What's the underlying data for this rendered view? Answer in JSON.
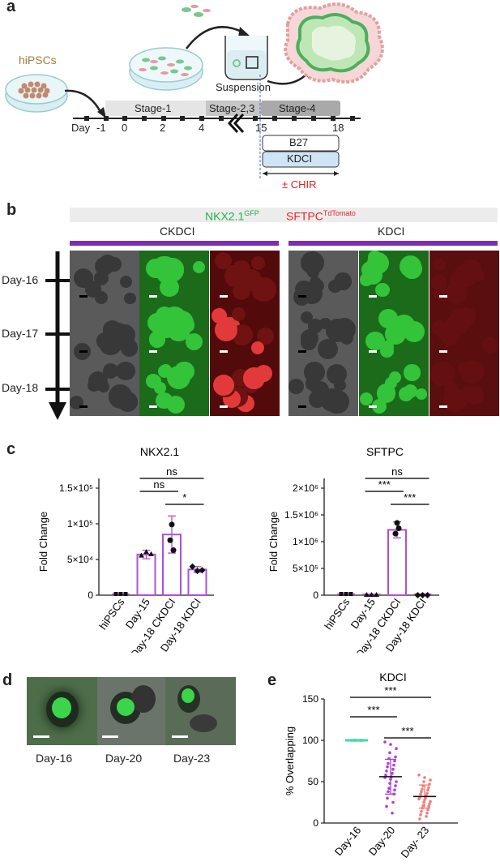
{
  "panel_letters": {
    "a": "a",
    "b": "b",
    "c": "c",
    "d": "d",
    "e": "e"
  },
  "panel_a": {
    "hipscs": "hiPSCs",
    "suspension": "Suspension",
    "stages": [
      "Stage-1",
      "Stage-2,3",
      "Stage-4"
    ],
    "day_label": "Day",
    "days": [
      "-1",
      "0",
      "2",
      "4",
      "15",
      "18"
    ],
    "media": [
      "B27",
      "KDCI"
    ],
    "chir": "± CHIR"
  },
  "panel_b": {
    "nkx_label": "NKX2.1",
    "nkx_sup": "GFP",
    "sftpc_label": "SFTPC",
    "sftpc_sup": "TdTomato",
    "conditions": [
      "CKDCI",
      "KDCI"
    ],
    "days": [
      "Day-16",
      "Day-17",
      "Day-18"
    ],
    "colors": {
      "purple": "#7a2fb0",
      "green": "#1fb34a",
      "red": "#e8262a"
    }
  },
  "chart_data": [
    {
      "type": "bar",
      "title": "NKX2.1",
      "ylabel": "Fold Change",
      "categories": [
        "hiPSCs",
        "Day-15",
        "Day-18 CKDCI",
        "Day-18 KDCI"
      ],
      "values": [
        0,
        57000,
        85000,
        36000
      ],
      "error": [
        0,
        6000,
        26000,
        4000
      ],
      "points": [
        [
          0,
          0,
          0
        ],
        [
          55000,
          60000,
          57000
        ],
        [
          99000,
          77000,
          63000
        ],
        [
          40000,
          34000,
          35000
        ]
      ],
      "yticks": [
        "0",
        "5×10⁴",
        "1×10⁵",
        "1.5×10⁵"
      ],
      "ytick_values": [
        0,
        50000,
        100000,
        150000
      ],
      "ylim": [
        0,
        150000
      ],
      "significance": [
        {
          "from": 1,
          "to": 3,
          "label": "ns"
        },
        {
          "from": 1,
          "to": 2,
          "label": "ns"
        },
        {
          "from": 2,
          "to": 3,
          "label": "*"
        }
      ]
    },
    {
      "type": "bar",
      "title": "SFTPC",
      "ylabel": "Fold Change",
      "categories": [
        "hiPSCs",
        "Day-15",
        "Day-18 CKDCI",
        "Day-18 KDCI"
      ],
      "values": [
        0,
        0,
        1220000,
        0
      ],
      "error": [
        0,
        0,
        150000,
        0
      ],
      "points": [
        [
          0,
          0,
          0
        ],
        [
          0,
          0,
          0
        ],
        [
          1350000,
          1150000,
          1250000
        ],
        [
          0,
          0,
          0
        ]
      ],
      "yticks": [
        "0",
        "5×10⁵",
        "1×10⁶",
        "1.5×10⁶",
        "2×10⁶"
      ],
      "ytick_values": [
        0,
        500000,
        1000000,
        1500000,
        2000000
      ],
      "ylim": [
        0,
        2000000
      ],
      "significance": [
        {
          "from": 1,
          "to": 3,
          "label": "ns"
        },
        {
          "from": 1,
          "to": 2,
          "label": "***"
        },
        {
          "from": 2,
          "to": 3,
          "label": "***"
        }
      ]
    },
    {
      "type": "scatter",
      "title": "KDCI",
      "ylabel": "% Overlapping",
      "categories": [
        "Day-16",
        "Day-20",
        "Day- 23"
      ],
      "means": [
        100,
        56,
        32
      ],
      "sd": [
        0,
        21,
        14
      ],
      "points": [
        [
          100,
          100,
          100,
          100,
          100,
          100,
          100,
          100,
          100,
          100
        ],
        [
          98,
          95,
          90,
          85,
          80,
          78,
          75,
          72,
          70,
          68,
          65,
          63,
          60,
          58,
          56,
          55,
          53,
          50,
          48,
          45,
          42,
          40,
          38,
          35,
          30,
          25,
          20,
          12
        ],
        [
          58,
          55,
          52,
          50,
          47,
          45,
          43,
          41,
          40,
          38,
          36,
          35,
          33,
          31,
          30,
          29,
          28,
          26,
          25,
          23,
          21,
          20,
          18,
          16,
          14,
          12,
          10,
          8,
          5
        ]
      ],
      "yticks": [
        "0",
        "50",
        "100",
        "150"
      ],
      "ytick_values": [
        0,
        50,
        100,
        150
      ],
      "ylim": [
        0,
        150
      ],
      "significance": [
        {
          "from": 0,
          "to": 2,
          "label": "***"
        },
        {
          "from": 0,
          "to": 1,
          "label": "***"
        },
        {
          "from": 1,
          "to": 2,
          "label": "***"
        }
      ],
      "colors": [
        "#3fd9a0",
        "#b03fd6",
        "#f07d7d"
      ]
    }
  ],
  "panel_d": {
    "days": [
      "Day-16",
      "Day-20",
      "Day-23"
    ]
  }
}
